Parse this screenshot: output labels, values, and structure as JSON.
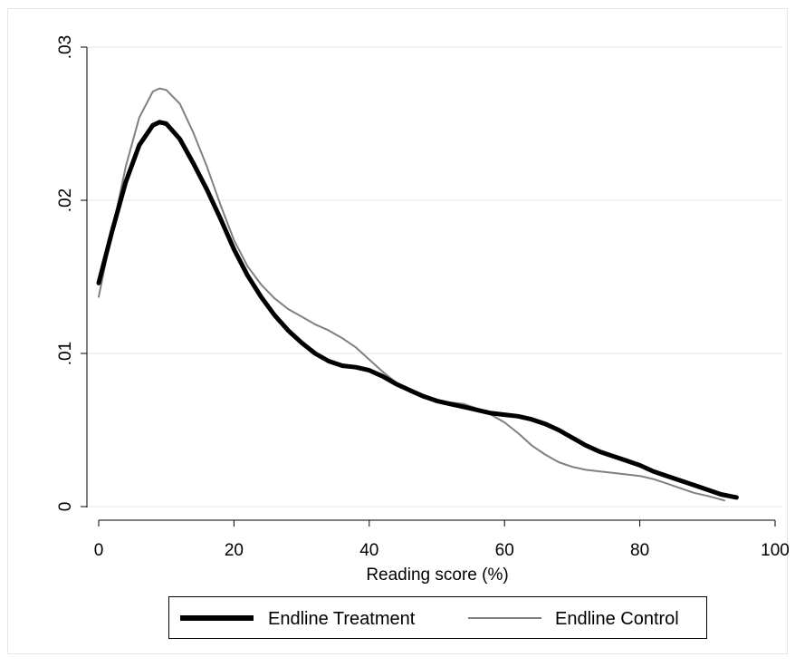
{
  "chart_data": {
    "type": "line",
    "title": "",
    "xlabel": "Reading score (%)",
    "ylabel": "",
    "xlim": [
      0,
      100
    ],
    "ylim": [
      0,
      0.03
    ],
    "xticks": [
      0,
      20,
      40,
      60,
      80,
      100
    ],
    "xtick_labels": [
      "0",
      "20",
      "40",
      "60",
      "80",
      "100"
    ],
    "yticks": [
      0,
      0.01,
      0.02,
      0.03
    ],
    "ytick_labels": [
      "0",
      ".01",
      ".02",
      ".03"
    ],
    "grid": true,
    "legend_position": "bottom",
    "series": [
      {
        "name": "Endline Treatment",
        "color": "#000000",
        "style": "thick",
        "x": [
          0,
          2,
          4,
          6,
          8,
          9,
          10,
          12,
          14,
          16,
          18,
          20,
          22,
          24,
          26,
          28,
          30,
          32,
          34,
          36,
          38,
          40,
          42,
          44,
          46,
          48,
          50,
          52,
          54,
          56,
          58,
          60,
          62,
          64,
          66,
          68,
          70,
          72,
          74,
          76,
          78,
          80,
          82,
          84,
          86,
          88,
          90,
          92,
          94.3
        ],
        "y": [
          0.0146,
          0.018,
          0.0212,
          0.0236,
          0.0249,
          0.0251,
          0.025,
          0.024,
          0.0224,
          0.0207,
          0.0188,
          0.0168,
          0.0151,
          0.0137,
          0.0125,
          0.0115,
          0.0107,
          0.01,
          0.0095,
          0.0092,
          0.0091,
          0.0089,
          0.0085,
          0.008,
          0.0076,
          0.0072,
          0.0069,
          0.0067,
          0.0065,
          0.0063,
          0.0061,
          0.006,
          0.0059,
          0.0057,
          0.0054,
          0.005,
          0.0045,
          0.004,
          0.0036,
          0.0033,
          0.003,
          0.0027,
          0.0023,
          0.002,
          0.0017,
          0.0014,
          0.0011,
          0.0008,
          0.0006
        ]
      },
      {
        "name": "Endline Control",
        "color": "#808080",
        "style": "thin",
        "x": [
          0,
          2,
          4,
          6,
          8,
          9,
          10,
          12,
          14,
          16,
          18,
          20,
          22,
          24,
          26,
          28,
          30,
          32,
          34,
          36,
          38,
          40,
          42,
          44,
          46,
          48,
          50,
          52,
          54,
          56,
          58,
          60,
          62,
          64,
          66,
          68,
          70,
          72,
          74,
          76,
          78,
          80,
          82,
          84,
          86,
          88,
          90,
          92.5
        ],
        "y": [
          0.0137,
          0.018,
          0.0222,
          0.0254,
          0.0271,
          0.0273,
          0.0272,
          0.0263,
          0.0244,
          0.0222,
          0.0197,
          0.0174,
          0.0157,
          0.0145,
          0.0136,
          0.0129,
          0.0124,
          0.0119,
          0.0115,
          0.011,
          0.0104,
          0.0096,
          0.0088,
          0.0081,
          0.0075,
          0.0071,
          0.0069,
          0.0068,
          0.0067,
          0.0064,
          0.006,
          0.0055,
          0.0048,
          0.004,
          0.0034,
          0.0029,
          0.0026,
          0.0024,
          0.0023,
          0.0022,
          0.0021,
          0.002,
          0.0018,
          0.0015,
          0.0012,
          0.0009,
          0.0007,
          0.0004
        ]
      }
    ]
  }
}
